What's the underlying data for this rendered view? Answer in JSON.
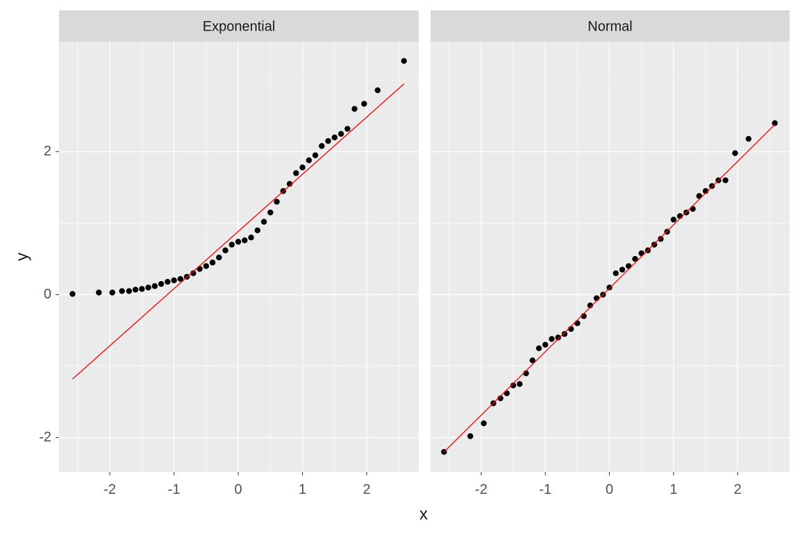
{
  "chart_data": {
    "type": "scatter",
    "x_label": "x",
    "y_label": "y",
    "xlim": [
      -2.79,
      2.81
    ],
    "ylim": [
      -2.48,
      3.54
    ],
    "xticks": [
      -2,
      -1,
      0,
      1,
      2
    ],
    "yticks": [
      -2,
      0,
      2
    ],
    "xminor": [
      -2.5,
      -1.5,
      -0.5,
      0.5,
      1.5,
      2.5
    ],
    "yminor": [
      -3,
      -1,
      1,
      3
    ],
    "grid": true,
    "point_color": "#000000",
    "line_color": "#ff0000",
    "panels": [
      {
        "title": "Exponential",
        "x": [
          -2.58,
          -2.17,
          -1.96,
          -1.81,
          -1.7,
          -1.6,
          -1.5,
          -1.4,
          -1.3,
          -1.2,
          -1.1,
          -1.0,
          -0.9,
          -0.8,
          -0.7,
          -0.6,
          -0.5,
          -0.4,
          -0.3,
          -0.2,
          -0.1,
          0.0,
          0.1,
          0.2,
          0.3,
          0.4,
          0.5,
          0.6,
          0.7,
          0.8,
          0.9,
          1.0,
          1.1,
          1.2,
          1.3,
          1.4,
          1.5,
          1.6,
          1.7,
          1.81,
          1.96,
          2.17,
          2.58
        ],
        "y": [
          0.01,
          0.03,
          0.03,
          0.05,
          0.05,
          0.07,
          0.08,
          0.1,
          0.12,
          0.15,
          0.18,
          0.2,
          0.22,
          0.25,
          0.3,
          0.36,
          0.4,
          0.45,
          0.52,
          0.62,
          0.7,
          0.74,
          0.76,
          0.8,
          0.9,
          1.02,
          1.15,
          1.3,
          1.45,
          1.55,
          1.7,
          1.78,
          1.88,
          1.95,
          2.08,
          2.15,
          2.2,
          2.25,
          2.32,
          2.6,
          2.67,
          2.86,
          3.27
        ],
        "line": {
          "x": [
            -2.58,
            2.58
          ],
          "y": [
            -1.18,
            2.95
          ]
        }
      },
      {
        "title": "Normal",
        "x": [
          -2.58,
          -2.17,
          -1.96,
          -1.81,
          -1.7,
          -1.6,
          -1.5,
          -1.4,
          -1.3,
          -1.2,
          -1.1,
          -1.0,
          -0.9,
          -0.8,
          -0.7,
          -0.6,
          -0.5,
          -0.4,
          -0.3,
          -0.2,
          -0.1,
          0.0,
          0.1,
          0.2,
          0.3,
          0.4,
          0.5,
          0.6,
          0.7,
          0.8,
          0.9,
          1.0,
          1.1,
          1.2,
          1.3,
          1.4,
          1.5,
          1.6,
          1.7,
          1.81,
          1.96,
          2.17,
          2.58
        ],
        "y": [
          -2.2,
          -1.98,
          -1.8,
          -1.52,
          -1.45,
          -1.38,
          -1.27,
          -1.25,
          -1.1,
          -0.92,
          -0.75,
          -0.7,
          -0.62,
          -0.6,
          -0.55,
          -0.48,
          -0.4,
          -0.3,
          -0.15,
          -0.05,
          0.0,
          0.1,
          0.3,
          0.35,
          0.4,
          0.5,
          0.58,
          0.62,
          0.7,
          0.78,
          0.88,
          1.05,
          1.1,
          1.15,
          1.2,
          1.38,
          1.45,
          1.52,
          1.6,
          1.6,
          1.98,
          2.18,
          2.4
        ],
        "line": {
          "x": [
            -2.58,
            2.58
          ],
          "y": [
            -2.2,
            2.38
          ]
        }
      }
    ]
  }
}
